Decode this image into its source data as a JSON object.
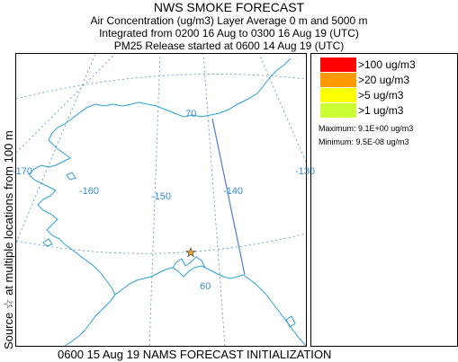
{
  "header": {
    "title": "NWS SMOKE FORECAST",
    "line1": "Air Concentration (ug/m3) Layer Average    0 m and  5000 m",
    "line2": "Integrated from 0200 16 Aug to 0300 16 Aug 19 (UTC)",
    "line3": "PM25 Release started at 0600 14 Aug 19 (UTC)"
  },
  "side_label": {
    "text": "Source ☆ at multiple locations",
    "top_text": "from   100 m"
  },
  "map": {
    "longitude_labels": [
      "-170",
      "-160",
      "-150",
      "-140",
      "-130"
    ],
    "latitude_labels": [
      "70",
      "60"
    ],
    "graticule_color": "#4a90d9",
    "coast_color": "#2b9fd8",
    "domain_color": "#4a7fd0",
    "source_marker": "star-icon"
  },
  "legend": {
    "items": [
      {
        "label": ">100 ug/m3",
        "color": "#ff0000"
      },
      {
        "label": ">20 ug/m3",
        "color": "#ff9900"
      },
      {
        "label": ">5 ug/m3",
        "color": "#ffff00"
      },
      {
        "label": ">1 ug/m3",
        "color": "#ccff33"
      }
    ],
    "maximum": "Maximum: 9.1E+00 ug/m3",
    "minimum": "Minimum: 9.5E-08 ug/m3"
  },
  "footer": {
    "text": "0600 15 Aug 19 NAMS FORECAST INITIALIZATION"
  }
}
